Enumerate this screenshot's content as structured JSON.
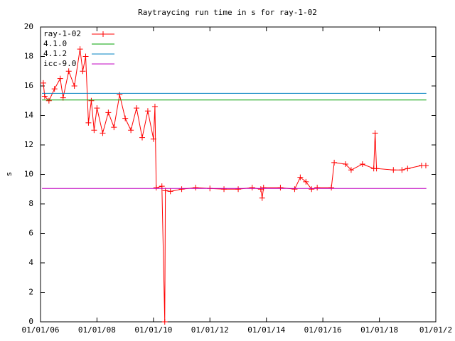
{
  "chart_data": {
    "type": "line",
    "title": "Raytraycing run time in s for ray-1-02",
    "y_label": "s",
    "xlim": [
      "2006-01-01",
      "2020-01-01"
    ],
    "xticks": [
      {
        "value": "2006-01-01",
        "label": "01/01/06"
      },
      {
        "value": "2008-01-01",
        "label": "01/01/08"
      },
      {
        "value": "2010-01-01",
        "label": "01/01/10"
      },
      {
        "value": "2012-01-01",
        "label": "01/01/12"
      },
      {
        "value": "2014-01-01",
        "label": "01/01/14"
      },
      {
        "value": "2016-01-01",
        "label": "01/01/16"
      },
      {
        "value": "2018-01-01",
        "label": "01/01/18"
      },
      {
        "value": "2020-01-01",
        "label": "01/01/2"
      }
    ],
    "ylim": [
      0,
      20
    ],
    "yticks": [
      0,
      2,
      4,
      6,
      8,
      10,
      12,
      14,
      16,
      18,
      20
    ],
    "legend": "top-left",
    "series": [
      {
        "name": "ray-1-02",
        "color": "#ff0000",
        "markers": true,
        "x": [
          "2006-02-06",
          "2006-02-24",
          "2006-04-20",
          "2006-07-01",
          "2006-09-13",
          "2006-10-20",
          "2007-01-01",
          "2007-03-15",
          "2007-05-27",
          "2007-07-01",
          "2007-08-08",
          "2007-09-13",
          "2007-10-20",
          "2007-11-25",
          "2008-01-01",
          "2008-03-15",
          "2008-05-27",
          "2008-08-08",
          "2008-10-20",
          "2009-01-01",
          "2009-03-15",
          "2009-05-27",
          "2009-08-08",
          "2009-10-20",
          "2010-01-01",
          "2010-01-20",
          "2010-02-06",
          "2010-04-20",
          "2010-05-27",
          "2010-06-04",
          "2010-08-08",
          "2011-01-01",
          "2011-07-01",
          "2012-01-01",
          "2012-07-01",
          "2013-01-01",
          "2013-07-01",
          "2013-10-20",
          "2013-11-07",
          "2013-11-25",
          "2014-07-01",
          "2015-01-01",
          "2015-03-15",
          "2015-05-27",
          "2015-08-08",
          "2015-10-20",
          "2016-04-20",
          "2016-05-27",
          "2016-10-20",
          "2017-01-01",
          "2017-05-27",
          "2017-10-20",
          "2017-11-07",
          "2017-11-25",
          "2018-07-01",
          "2018-10-20",
          "2019-01-01",
          "2019-07-01",
          "2019-08-25"
        ],
        "values": [
          16.2,
          15.3,
          15.0,
          15.8,
          16.5,
          15.2,
          17.0,
          16.0,
          18.5,
          17.0,
          18.0,
          13.5,
          15.0,
          13.0,
          14.5,
          12.8,
          14.2,
          13.2,
          15.4,
          13.8,
          13.0,
          14.5,
          12.5,
          14.3,
          12.4,
          14.6,
          9.1,
          9.2,
          0,
          8.9,
          8.85,
          9.0,
          9.1,
          9.05,
          9.0,
          9.0,
          9.1,
          9.0,
          8.4,
          9.1,
          9.1,
          9.0,
          9.8,
          9.5,
          9.0,
          9.1,
          9.1,
          10.8,
          10.7,
          10.3,
          10.7,
          10.4,
          12.8,
          10.4,
          10.3,
          10.3,
          10.4,
          10.6,
          10.6
        ]
      },
      {
        "name": "4.1.0",
        "color": "#00a000",
        "x": [
          "2006-01-20",
          "2019-09-01"
        ],
        "values": [
          15.05,
          15.05
        ]
      },
      {
        "name": "4.1.2",
        "color": "#0080c0",
        "x": [
          "2006-01-20",
          "2019-09-01"
        ],
        "values": [
          15.5,
          15.5
        ]
      },
      {
        "name": "icc-9.0",
        "color": "#c000c0",
        "x": [
          "2006-01-20",
          "2019-09-01"
        ],
        "values": [
          9.05,
          9.05
        ]
      }
    ]
  }
}
